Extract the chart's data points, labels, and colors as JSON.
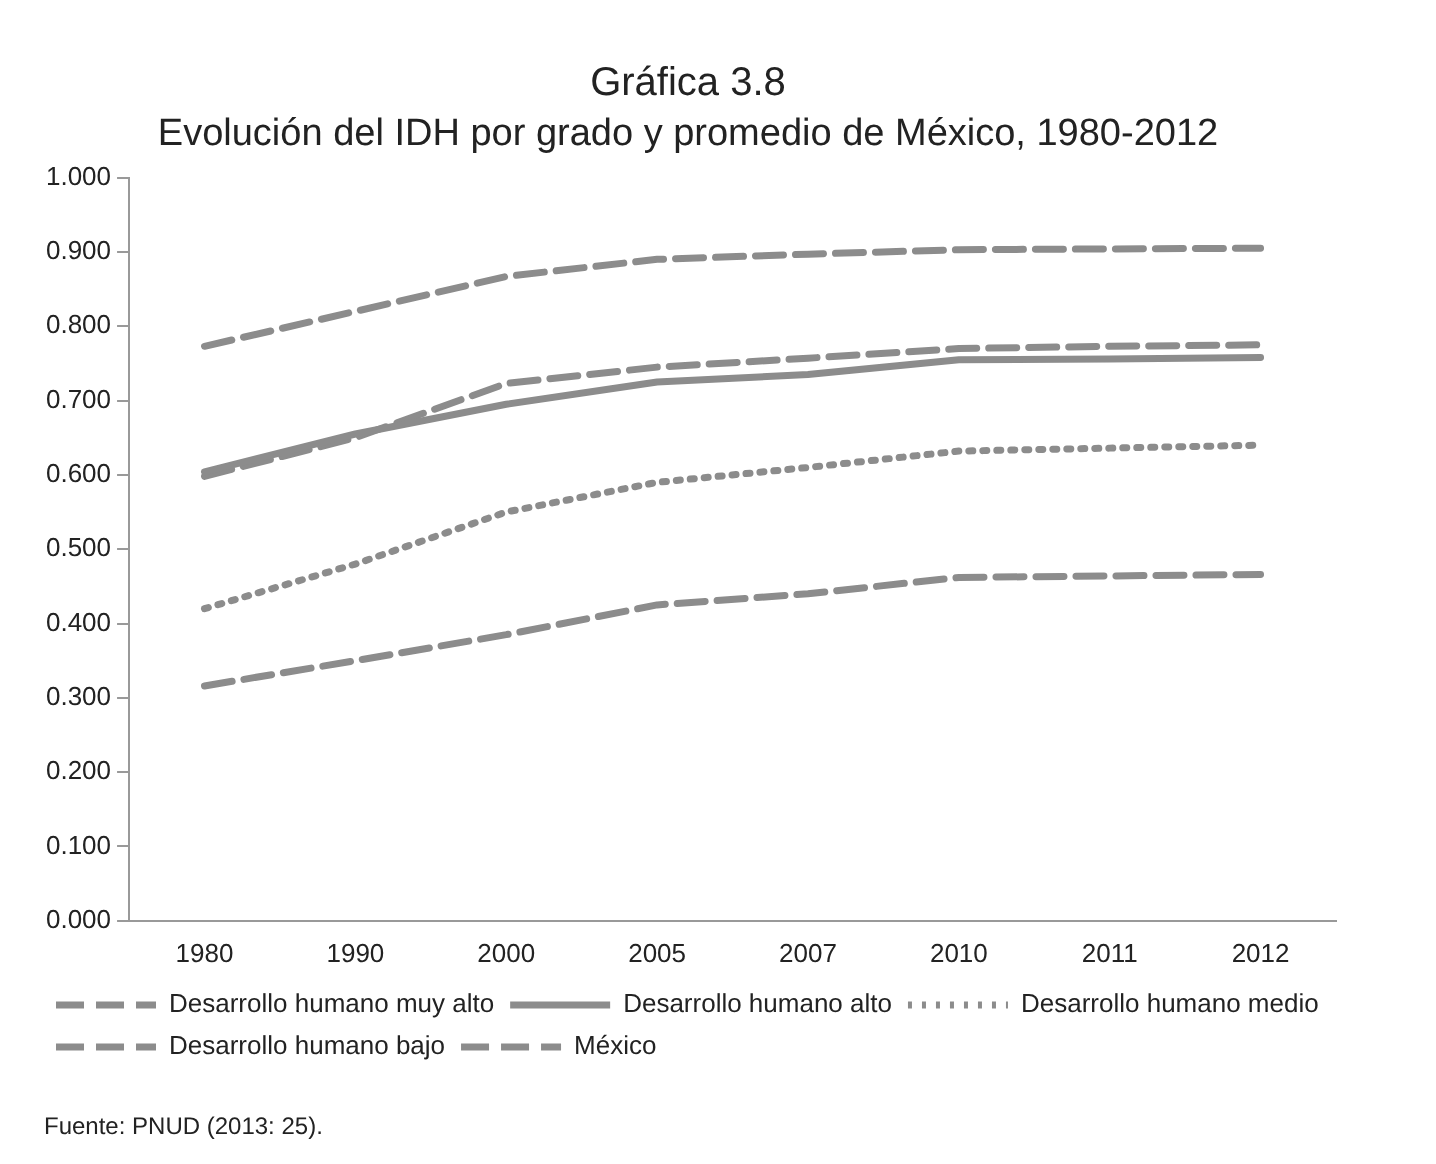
{
  "chart_data": {
    "type": "line",
    "title": "Gráfica 3.8",
    "subtitle": "Evolución del IDH por grado y promedio de México, 1980-2012",
    "categories": [
      "1980",
      "1990",
      "2000",
      "2005",
      "2007",
      "2010",
      "2011",
      "2012"
    ],
    "series": [
      {
        "name": "Desarrollo humano muy alto",
        "color": "#8c8c8c",
        "line_style": "dashed",
        "values": [
          0.773,
          0.82,
          0.867,
          0.89,
          0.897,
          0.903,
          0.904,
          0.905
        ]
      },
      {
        "name": "Desarrollo humano alto",
        "color": "#8c8c8c",
        "line_style": "solid",
        "values": [
          0.604,
          0.655,
          0.695,
          0.725,
          0.735,
          0.755,
          0.756,
          0.758
        ]
      },
      {
        "name": "Desarrollo humano medio",
        "color": "#8c8c8c",
        "line_style": "dotted",
        "values": [
          0.42,
          0.48,
          0.55,
          0.59,
          0.61,
          0.632,
          0.636,
          0.64
        ]
      },
      {
        "name": "Desarrollo humano bajo",
        "color": "#8c8c8c",
        "line_style": "dashed",
        "values": [
          0.316,
          0.35,
          0.385,
          0.425,
          0.44,
          0.462,
          0.464,
          0.466
        ]
      },
      {
        "name": "México",
        "color": "#8c8c8c",
        "line_style": "dashed",
        "values": [
          0.598,
          0.65,
          0.723,
          0.745,
          0.757,
          0.77,
          0.773,
          0.775
        ]
      }
    ],
    "ylim": [
      0,
      1
    ],
    "yticks": [
      {
        "value": 0,
        "label": "0.000"
      },
      {
        "value": 0.1,
        "label": "0.100"
      },
      {
        "value": 0.2,
        "label": "0.200"
      },
      {
        "value": 0.3,
        "label": "0.300"
      },
      {
        "value": 0.4,
        "label": "0.400"
      },
      {
        "value": 0.5,
        "label": "0.500"
      },
      {
        "value": 0.6,
        "label": "0.600"
      },
      {
        "value": 0.7,
        "label": "0.700"
      },
      {
        "value": 0.8,
        "label": "0.800"
      },
      {
        "value": 0.9,
        "label": "0.900"
      },
      {
        "value": 1,
        "label": "1.000"
      }
    ],
    "grid": false,
    "legend": "bottom",
    "marker": "none",
    "annotations": [
      "Fuente: PNUD (2013: 25)."
    ]
  }
}
